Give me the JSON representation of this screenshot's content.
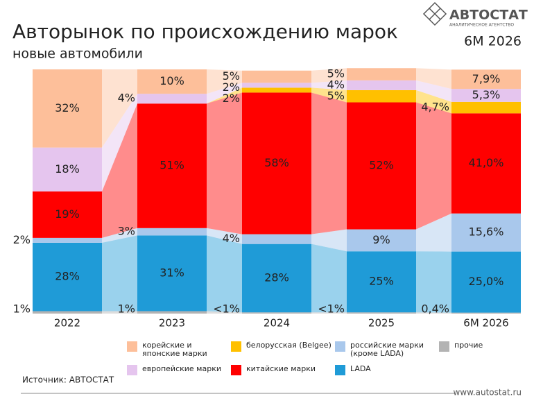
{
  "chart_data": {
    "type": "stacked-bar",
    "title": "Авторынок по происхождению марок",
    "subtitle": "новые автомобили",
    "period": "6М 2026",
    "brand": "АВТОСТАТ",
    "brand_tagline": "АНАЛИТИЧЕСКОЕ АГЕНТСТВО",
    "source": "Источник: АВТОСТАТ",
    "website": "www.autostat.ru",
    "categories": [
      "2022",
      "2023",
      "2024",
      "2025",
      "6М 2026"
    ],
    "ylim": [
      0,
      100
    ],
    "series": [
      {
        "name": "прочие",
        "color": "#b3b3b3",
        "values": [
          1,
          1,
          0.5,
          0.5,
          0.4
        ],
        "value_labels": [
          "1%",
          "1%",
          "<1%",
          "<1%",
          "0,4%"
        ]
      },
      {
        "name": "LADA",
        "color": "#1f9bd7",
        "values": [
          28,
          31,
          28,
          25,
          25.0
        ],
        "value_labels": [
          "28%",
          "31%",
          "28%",
          "25%",
          "25,0%"
        ]
      },
      {
        "name": "российские марки (кроме LADA)",
        "color": "#a9c8ec",
        "values": [
          2,
          3,
          4,
          9,
          15.6
        ],
        "value_labels": [
          "2%",
          "3%",
          "4%",
          "9%",
          "15,6%"
        ]
      },
      {
        "name": "китайские марки",
        "color": "#ff0000",
        "values": [
          19,
          51,
          58,
          52,
          41.0
        ],
        "value_labels": [
          "19%",
          "51%",
          "58%",
          "52%",
          "41,0%"
        ]
      },
      {
        "name": "белорусская (Belgee)",
        "color": "#ffc000",
        "values": [
          null,
          null,
          2,
          5,
          4.7
        ],
        "value_labels": [
          null,
          null,
          "2%",
          "5%",
          "4,7%"
        ]
      },
      {
        "name": "европейские марки",
        "color": "#e5c5ee",
        "values": [
          18,
          4,
          2,
          4,
          5.3
        ],
        "value_labels": [
          "18%",
          "4%",
          "2%",
          "4%",
          "5,3%"
        ]
      },
      {
        "name": "корейские и японские марки",
        "color": "#fdbf9a",
        "values": [
          32,
          10,
          5,
          5,
          7.9
        ],
        "value_labels": [
          "32%",
          "10%",
          "5%",
          "5%",
          "7,9%"
        ]
      }
    ]
  }
}
